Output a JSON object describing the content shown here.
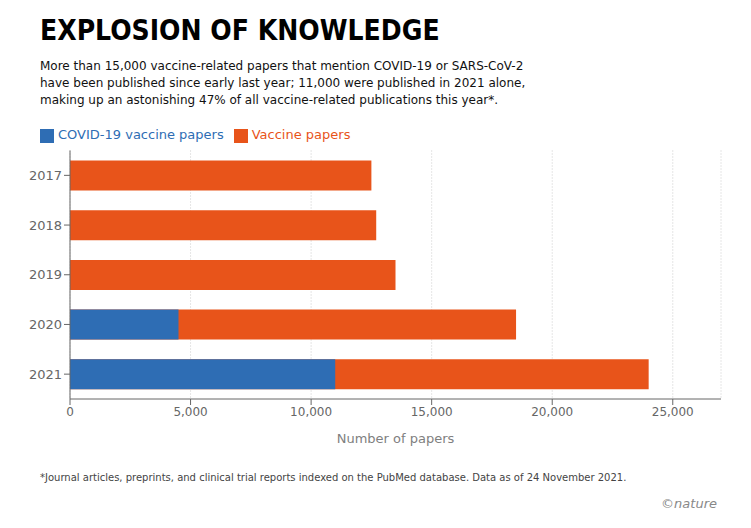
{
  "chart_data": {
    "type": "bar",
    "orientation": "horizontal",
    "title": "EXPLOSION OF KNOWLEDGE",
    "subtitle": "More than 15,000 vaccine-related papers that mention COVID-19 or SARS-CoV-2\nhave been published since early last year; 11,000 were published in 2021 alone,\nmaking up an astonishing 47% of all vaccine-related publications this year*.",
    "annotations": [
      "*Journal articles, preprints, and clinical trial reports indexed on the PubMed database. Data as of 24 November 2021.",
      "©nature"
    ],
    "xlabel": "Number of papers",
    "categories": [
      "2021",
      "2020",
      "2019",
      "2018",
      "2017"
    ],
    "series": [
      {
        "name": "Vaccine papers",
        "color": "#e8541a",
        "values": [
          24000,
          18500,
          13500,
          12700,
          12500
        ]
      },
      {
        "name": "COVID-19 vaccine papers",
        "color": "#2e6db4",
        "values": [
          11000,
          4500,
          0,
          0,
          0
        ]
      }
    ],
    "xlim": [
      0,
      27000
    ],
    "xticks": [
      0,
      {
        "value": 5000,
        "label": "5,000"
      },
      {
        "value": 10000,
        "label": "10,000"
      },
      {
        "value": 15000,
        "label": "15,000"
      },
      {
        "value": 20000,
        "label": "20,000"
      },
      {
        "value": 25000,
        "label": "25,000"
      }
    ],
    "grid": true,
    "legend": "top-left"
  }
}
